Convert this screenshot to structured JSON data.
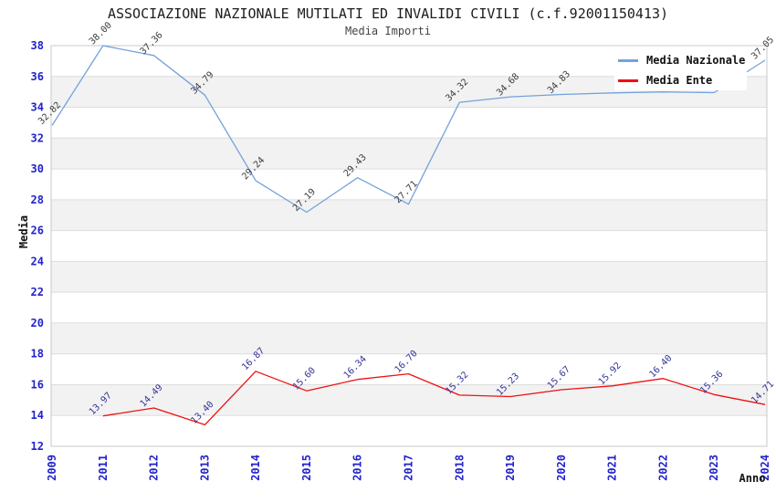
{
  "header": {
    "title": "ASSOCIAZIONE NAZIONALE MUTILATI ED INVALIDI CIVILI (c.f.92001150413)",
    "subtitle": "Media Importi"
  },
  "legend": {
    "position": "top-right",
    "items": [
      {
        "label": "Media Nazionale",
        "color": "#73A2DC"
      },
      {
        "label": "Media Ente",
        "color": "#EE1111"
      }
    ]
  },
  "axes": {
    "y_title": "Media",
    "x_title": "Anno",
    "y_ticks": [
      "38",
      "36",
      "34",
      "32",
      "30",
      "28",
      "26",
      "24",
      "22",
      "20",
      "18",
      "16",
      "14",
      "12"
    ],
    "x_ticks": [
      "2009",
      "2011",
      "2012",
      "2013",
      "2014",
      "2015",
      "2016",
      "2017",
      "2018",
      "2019",
      "2020",
      "2021",
      "2022",
      "2023",
      "2024"
    ],
    "tick_color": "#2222CC"
  },
  "colors": {
    "background": "#FFFFFF",
    "band_gray": "#F2F2F2",
    "gridline": "#DDDDDD",
    "plot_border": "#C8C8C8",
    "axis_title": "#111111"
  },
  "chart_data": {
    "type": "line",
    "title": "ASSOCIAZIONE NAZIONALE MUTILATI ED INVALIDI CIVILI (c.f.92001150413)",
    "subtitle": "Media Importi",
    "xlabel": "Anno",
    "ylabel": "Media",
    "categories": [
      "2009",
      "2011",
      "2012",
      "2013",
      "2014",
      "2015",
      "2016",
      "2017",
      "2018",
      "2019",
      "2020",
      "2021",
      "2022",
      "2023",
      "2024"
    ],
    "ylim": [
      12,
      38
    ],
    "y_tick_step": 2,
    "grid": "horizontal-bands",
    "legend_position": "top-right",
    "series": [
      {
        "name": "Media Nazionale",
        "color": "#73A2DC",
        "label_color": "#3C3C3C",
        "values": [
          32.82,
          38.0,
          37.36,
          34.79,
          29.24,
          27.19,
          29.43,
          27.71,
          34.32,
          34.68,
          34.83,
          34.93,
          35.0,
          34.95,
          37.05
        ],
        "point_labels": [
          "32.82",
          "38.00",
          "37.36",
          "34.79",
          "29.24",
          "27.19",
          "29.43",
          "27.71",
          "34.32",
          "34.68",
          "34.83",
          null,
          null,
          null,
          "37.05"
        ],
        "labels_hidden_by_legend": [
          "2021",
          "2022",
          "2023"
        ]
      },
      {
        "name": "Media Ente",
        "color": "#EE1111",
        "label_color": "#333399",
        "values": [
          null,
          13.97,
          14.49,
          13.4,
          16.87,
          15.6,
          16.34,
          16.7,
          15.32,
          15.23,
          15.67,
          15.92,
          16.4,
          15.36,
          14.71
        ],
        "point_labels": [
          null,
          "13.97",
          "14.49",
          "13.40",
          "16.87",
          "15.60",
          "16.34",
          "16.70",
          "15.32",
          "15.23",
          "15.67",
          "15.92",
          "16.40",
          "15.36",
          "14.71"
        ]
      }
    ]
  }
}
